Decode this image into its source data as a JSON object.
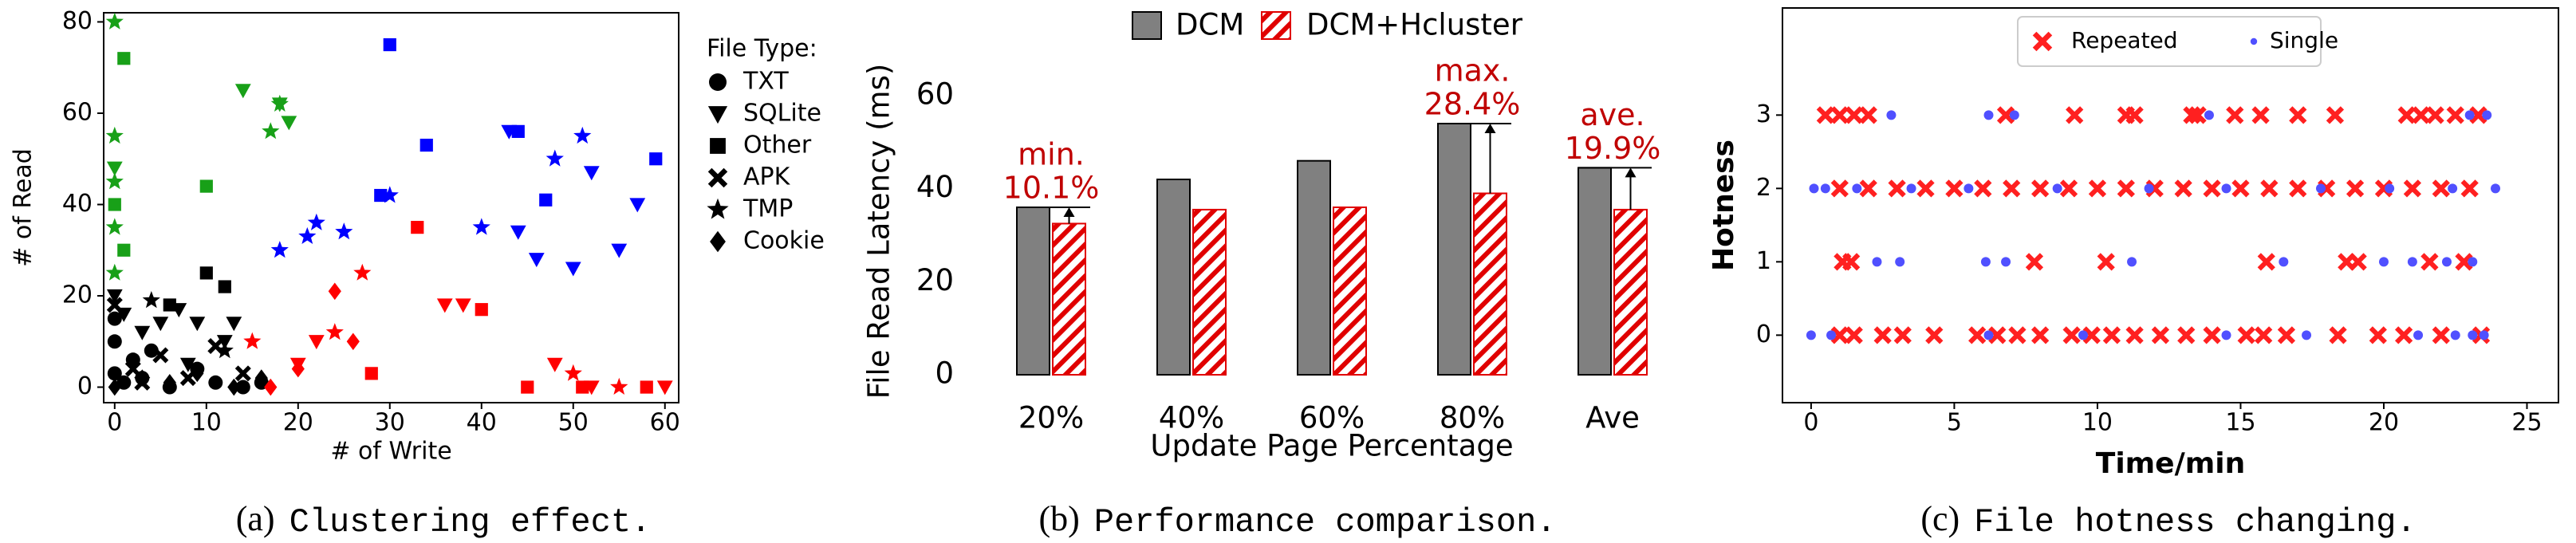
{
  "chart_data": [
    {
      "type": "scatter",
      "xlabel": "# of Write",
      "ylabel": "# of Read",
      "legend_title": "File Type:",
      "legend": "right-outside",
      "frame": true,
      "caption_label": "(a)",
      "caption": "Clustering effect.",
      "xlim": [
        -1.2,
        61.5
      ],
      "ylim": [
        -3.4,
        82
      ],
      "xticks": [
        0,
        10,
        20,
        30,
        40,
        50,
        60
      ],
      "yticks": [
        0,
        20,
        40,
        60,
        80
      ],
      "series": [
        {
          "name": "TXT",
          "marker": "circle",
          "x": [
            0,
            1,
            2,
            3,
            6,
            9,
            11,
            14,
            16,
            0,
            0,
            4
          ],
          "y": [
            3,
            1,
            6,
            2,
            0,
            4,
            1,
            0,
            1,
            10,
            15,
            8
          ],
          "colors": [
            "#000000",
            "#000000",
            "#000000",
            "#000000",
            "#000000",
            "#000000",
            "#000000",
            "#000000",
            "#000000",
            "#000000",
            "#000000",
            "#000000"
          ]
        },
        {
          "name": "SQLite",
          "marker": "triangle-down",
          "x": [
            0,
            1,
            3,
            5,
            7,
            9,
            12,
            13,
            8,
            20,
            22,
            0,
            14,
            46,
            50,
            55,
            57,
            52,
            44,
            43,
            18,
            19,
            36,
            38,
            52,
            60,
            48
          ],
          "y": [
            20,
            16,
            12,
            14,
            17,
            14,
            10,
            14,
            5,
            5,
            10,
            48,
            65,
            28,
            26,
            30,
            40,
            47,
            34,
            56,
            62,
            58,
            18,
            18,
            0,
            0,
            5
          ],
          "colors": [
            "#000000",
            "#000000",
            "#000000",
            "#000000",
            "#000000",
            "#000000",
            "#000000",
            "#000000",
            "#000000",
            "#ff0000",
            "#ff0000",
            "#18a018",
            "#18a018",
            "#0000ff",
            "#0000ff",
            "#0000ff",
            "#0000ff",
            "#0000ff",
            "#0000ff",
            "#0000ff",
            "#18a018",
            "#18a018",
            "#ff0000",
            "#ff0000",
            "#ff0000",
            "#ff0000",
            "#ff0000"
          ]
        },
        {
          "name": "Other",
          "marker": "square",
          "x": [
            1,
            10,
            12,
            6,
            30,
            34,
            44,
            47,
            59,
            29,
            33,
            40,
            28,
            45,
            51,
            58,
            0,
            1,
            10
          ],
          "y": [
            72,
            44,
            22,
            18,
            75,
            53,
            56,
            41,
            50,
            42,
            35,
            17,
            3,
            0,
            0,
            0,
            40,
            30,
            25
          ],
          "colors": [
            "#18a018",
            "#18a018",
            "#000000",
            "#000000",
            "#0000ff",
            "#0000ff",
            "#0000ff",
            "#0000ff",
            "#0000ff",
            "#0000ff",
            "#ff0000",
            "#ff0000",
            "#ff0000",
            "#ff0000",
            "#ff0000",
            "#ff0000",
            "#18a018",
            "#18a018",
            "#000000"
          ]
        },
        {
          "name": "APK",
          "marker": "x",
          "x": [
            2,
            5,
            8,
            11,
            14,
            0,
            3
          ],
          "y": [
            4,
            7,
            2,
            9,
            3,
            18,
            1
          ],
          "colors": [
            "#000000",
            "#000000",
            "#000000",
            "#000000",
            "#000000",
            "#000000",
            "#000000"
          ]
        },
        {
          "name": "TMP",
          "marker": "star",
          "x": [
            0,
            0,
            0,
            4,
            17,
            18,
            21,
            18,
            22,
            25,
            27,
            30,
            40,
            48,
            51,
            12,
            0,
            0,
            15,
            24,
            50,
            55
          ],
          "y": [
            80,
            55,
            35,
            19,
            56,
            62,
            33,
            30,
            36,
            34,
            25,
            42,
            35,
            50,
            55,
            8,
            25,
            45,
            10,
            12,
            3,
            0
          ],
          "colors": [
            "#18a018",
            "#18a018",
            "#18a018",
            "#000000",
            "#18a018",
            "#18a018",
            "#0000ff",
            "#0000ff",
            "#0000ff",
            "#0000ff",
            "#ff0000",
            "#0000ff",
            "#0000ff",
            "#0000ff",
            "#0000ff",
            "#000000",
            "#18a018",
            "#18a018",
            "#ff0000",
            "#ff0000",
            "#ff0000",
            "#ff0000"
          ]
        },
        {
          "name": "Cookie",
          "marker": "diamond",
          "x": [
            0,
            3,
            6,
            9,
            13,
            16,
            24,
            26,
            20,
            17
          ],
          "y": [
            0,
            2,
            1,
            3,
            0,
            2,
            21,
            10,
            4,
            0
          ],
          "colors": [
            "#000000",
            "#000000",
            "#000000",
            "#000000",
            "#000000",
            "#000000",
            "#ff0000",
            "#ff0000",
            "#ff0000",
            "#ff0000"
          ]
        }
      ]
    },
    {
      "type": "bar",
      "xlabel": "Update Page Percentage",
      "ylabel": "File Read Latency (ms)",
      "legend": "top",
      "frame": false,
      "caption_label": "(b)",
      "caption": "Performance comparison.",
      "categories": [
        "20%",
        "40%",
        "60%",
        "80%",
        "Ave"
      ],
      "ylim": [
        0,
        66
      ],
      "yticks": [
        0,
        20,
        40,
        60
      ],
      "series": [
        {
          "name": "DCM",
          "color": "#808080",
          "pattern": "solid",
          "values": [
            36,
            42,
            46,
            54,
            44.5
          ]
        },
        {
          "name": "DCM+Hcluster",
          "color": "#e00000",
          "pattern": "hatch",
          "values": [
            32.5,
            35.5,
            36,
            39,
            35.5
          ]
        }
      ],
      "annotations": [
        {
          "category": "20%",
          "title": "min.",
          "text": "10.1%",
          "color": "#c00000"
        },
        {
          "category": "80%",
          "title": "max.",
          "text": "28.4%",
          "color": "#c00000"
        },
        {
          "category": "Ave",
          "title": "ave.",
          "text": "19.9%",
          "color": "#c00000"
        }
      ]
    },
    {
      "type": "scatter",
      "xlabel": "Time/min",
      "ylabel": "Hotness",
      "legend": "upper-center",
      "frame": true,
      "caption_label": "(c)",
      "caption": "File hotness changing.",
      "xlim": [
        -1,
        26.1
      ],
      "ylim": [
        -0.92,
        4.46
      ],
      "xticks": [
        0,
        5,
        10,
        15,
        20,
        25
      ],
      "yticks": [
        0,
        1,
        2,
        3
      ],
      "series": [
        {
          "name": "Repeated",
          "marker": "x",
          "color": "#ff2020",
          "x": [
            0.5,
            1,
            1.5,
            2,
            6.8,
            9.2,
            11,
            11.3,
            13.3,
            13.5,
            14.8,
            15.7,
            17,
            18.3,
            20.8,
            21.3,
            21.8,
            22.5,
            23.3,
            1,
            2,
            3,
            4,
            5,
            6,
            7,
            8,
            9,
            10,
            11,
            12,
            13,
            14,
            15,
            16,
            17,
            18,
            19,
            20,
            21,
            22,
            23,
            1.1,
            1.4,
            7.8,
            10.3,
            15.9,
            18.7,
            19.1,
            21.6,
            22.8,
            1,
            1.5,
            2.5,
            3.2,
            4.3,
            5.8,
            6.5,
            7.2,
            8,
            9.1,
            9.8,
            10.5,
            11.3,
            12.2,
            13.1,
            14,
            15.2,
            15.8,
            16.6,
            18.4,
            19.8,
            20.7,
            22,
            23.4
          ],
          "y": [
            3,
            3,
            3,
            3,
            3,
            3,
            3,
            3,
            3,
            3,
            3,
            3,
            3,
            3,
            3,
            3,
            3,
            3,
            3,
            2,
            2,
            2,
            2,
            2,
            2,
            2,
            2,
            2,
            2,
            2,
            2,
            2,
            2,
            2,
            2,
            2,
            2,
            2,
            2,
            2,
            2,
            2,
            1,
            1,
            1,
            1,
            1,
            1,
            1,
            1,
            1,
            0,
            0,
            0,
            0,
            0,
            0,
            0,
            0,
            0,
            0,
            0,
            0,
            0,
            0,
            0,
            0,
            0,
            0,
            0,
            0,
            0,
            0,
            0,
            0
          ]
        },
        {
          "name": "Single",
          "marker": "dot",
          "color": "#5050ff",
          "x": [
            2.8,
            6.2,
            7.1,
            13.9,
            23,
            23.6,
            0.1,
            0.5,
            1.6,
            3.5,
            5.5,
            8.6,
            11.8,
            14.5,
            17.8,
            20.2,
            22.4,
            23.9,
            2.3,
            3.1,
            6.1,
            6.8,
            11.2,
            16.5,
            20,
            21,
            22.2,
            23.1,
            0,
            0.7,
            6.2,
            9.5,
            14.5,
            17.3,
            21.2,
            22.5,
            23.1,
            23.5
          ],
          "y": [
            3,
            3,
            3,
            3,
            3,
            3,
            2,
            2,
            2,
            2,
            2,
            2,
            2,
            2,
            2,
            2,
            2,
            2,
            1,
            1,
            1,
            1,
            1,
            1,
            1,
            1,
            1,
            1,
            0,
            0,
            0,
            0,
            0,
            0,
            0,
            0,
            0,
            0
          ]
        }
      ]
    }
  ]
}
